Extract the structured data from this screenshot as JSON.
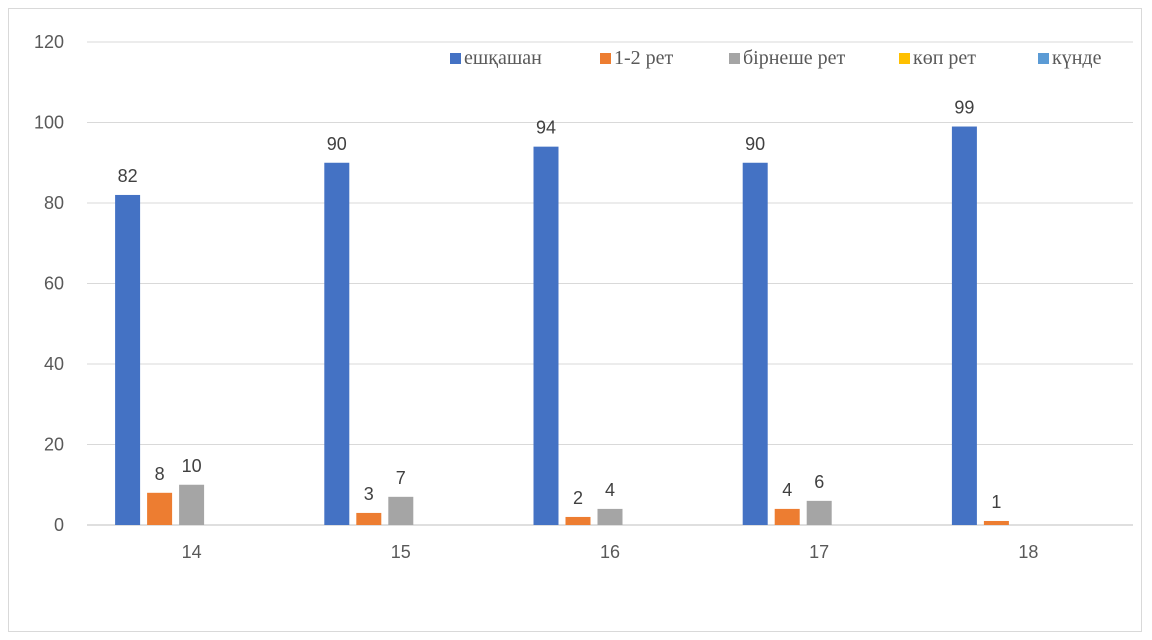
{
  "chart_data": {
    "type": "bar",
    "categories": [
      "14",
      "15",
      "16",
      "17",
      "18"
    ],
    "series": [
      {
        "name": "ешқашан",
        "color": "#4472c4",
        "values": [
          82,
          90,
          94,
          90,
          99
        ]
      },
      {
        "name": "1-2 рет",
        "color": "#ed7d31",
        "values": [
          8,
          3,
          2,
          4,
          1
        ]
      },
      {
        "name": "бірнеше рет",
        "color": "#a5a5a5",
        "values": [
          10,
          7,
          4,
          6,
          0
        ]
      },
      {
        "name": "көп рет",
        "color": "#ffc000",
        "values": [
          0,
          0,
          0,
          0,
          0
        ]
      },
      {
        "name": "күнде",
        "color": "#5b9bd5",
        "values": [
          0,
          0,
          0,
          0,
          0
        ]
      }
    ],
    "data_labels": [
      [
        "82",
        "8",
        "10",
        "",
        ""
      ],
      [
        "90",
        "3",
        "7",
        "",
        ""
      ],
      [
        "94",
        "2",
        "4",
        "",
        ""
      ],
      [
        "90",
        "4",
        "6",
        "",
        ""
      ],
      [
        "99",
        "1",
        "",
        "",
        ""
      ]
    ],
    "yticks": [
      "0",
      "20",
      "40",
      "60",
      "80",
      "100",
      "120"
    ],
    "ylim": [
      0,
      120
    ],
    "grid": true,
    "legend_position": "top-right"
  }
}
